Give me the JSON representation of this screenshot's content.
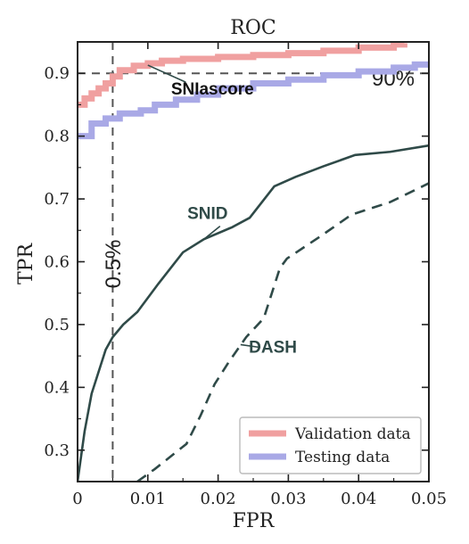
{
  "chart_data": {
    "type": "line",
    "title": "ROC",
    "xlabel": "FPR",
    "ylabel": "TPR",
    "xlim": [
      0,
      0.05
    ],
    "ylim": [
      0.25,
      0.95
    ],
    "x_ticks": [
      "0",
      "0.01",
      "0.02",
      "0.03",
      "0.04",
      "0.05"
    ],
    "y_ticks": [
      "0.3",
      "0.4",
      "0.5",
      "0.6",
      "0.7",
      "0.8",
      "0.9"
    ],
    "grid": false,
    "legend_position": "bottom-right",
    "colors": {
      "validation": "#f0a0a0",
      "testing": "#a9a9e6",
      "baseline": "#2f4a48",
      "reference": "#555555"
    },
    "series": [
      {
        "name": "Validation data",
        "style": "step",
        "x": [
          0,
          0.001,
          0.002,
          0.003,
          0.004,
          0.005,
          0.006,
          0.008,
          0.01,
          0.012,
          0.015,
          0.02,
          0.025,
          0.03,
          0.035,
          0.04,
          0.045,
          0.0465
        ],
        "y": [
          0.85,
          0.86,
          0.868,
          0.876,
          0.884,
          0.895,
          0.905,
          0.912,
          0.916,
          0.92,
          0.923,
          0.926,
          0.929,
          0.932,
          0.936,
          0.941,
          0.946,
          0.948
        ]
      },
      {
        "name": "Testing data",
        "style": "step",
        "x": [
          0,
          0.002,
          0.004,
          0.006,
          0.009,
          0.011,
          0.014,
          0.017,
          0.02,
          0.025,
          0.03,
          0.035,
          0.04,
          0.045,
          0.048,
          0.05
        ],
        "y": [
          0.8,
          0.82,
          0.828,
          0.836,
          0.841,
          0.85,
          0.858,
          0.866,
          0.876,
          0.884,
          0.89,
          0.897,
          0.903,
          0.909,
          0.914,
          0.918
        ]
      },
      {
        "name": "SNID",
        "style": "solid",
        "x": [
          0,
          0.001,
          0.002,
          0.004,
          0.005,
          0.0065,
          0.0085,
          0.0115,
          0.015,
          0.018,
          0.022,
          0.0245,
          0.028,
          0.031,
          0.035,
          0.0395,
          0.0445,
          0.05
        ],
        "y": [
          0.25,
          0.33,
          0.39,
          0.46,
          0.48,
          0.5,
          0.52,
          0.565,
          0.615,
          0.636,
          0.655,
          0.67,
          0.72,
          0.735,
          0.752,
          0.77,
          0.775,
          0.785
        ]
      },
      {
        "name": "DASH",
        "style": "dashed",
        "x": [
          0.0085,
          0.011,
          0.0155,
          0.0175,
          0.0195,
          0.0215,
          0.024,
          0.0265,
          0.0288,
          0.0298,
          0.0345,
          0.039,
          0.0445,
          0.05
        ],
        "y": [
          0.25,
          0.27,
          0.31,
          0.355,
          0.405,
          0.44,
          0.48,
          0.51,
          0.59,
          0.605,
          0.64,
          0.675,
          0.695,
          0.725
        ]
      }
    ],
    "reference_lines": {
      "horizontal": {
        "y": 0.9,
        "label": "90%"
      },
      "vertical": {
        "x": 0.005,
        "label": "0.5%"
      }
    },
    "annotations": [
      {
        "text": "SNIascore",
        "target": [
          0.01,
          0.913
        ],
        "text_at": [
          0.0192,
          0.866
        ]
      },
      {
        "text": "SNID",
        "target": [
          0.018,
          0.636
        ],
        "text_at": [
          0.0185,
          0.668
        ]
      },
      {
        "text": "DASH",
        "target": [
          0.0232,
          0.468
        ],
        "text_at": [
          0.0278,
          0.455
        ]
      }
    ],
    "legend": {
      "entries": [
        {
          "label": "Validation data",
          "series": "Validation data"
        },
        {
          "label": "Testing data",
          "series": "Testing data"
        }
      ]
    }
  }
}
